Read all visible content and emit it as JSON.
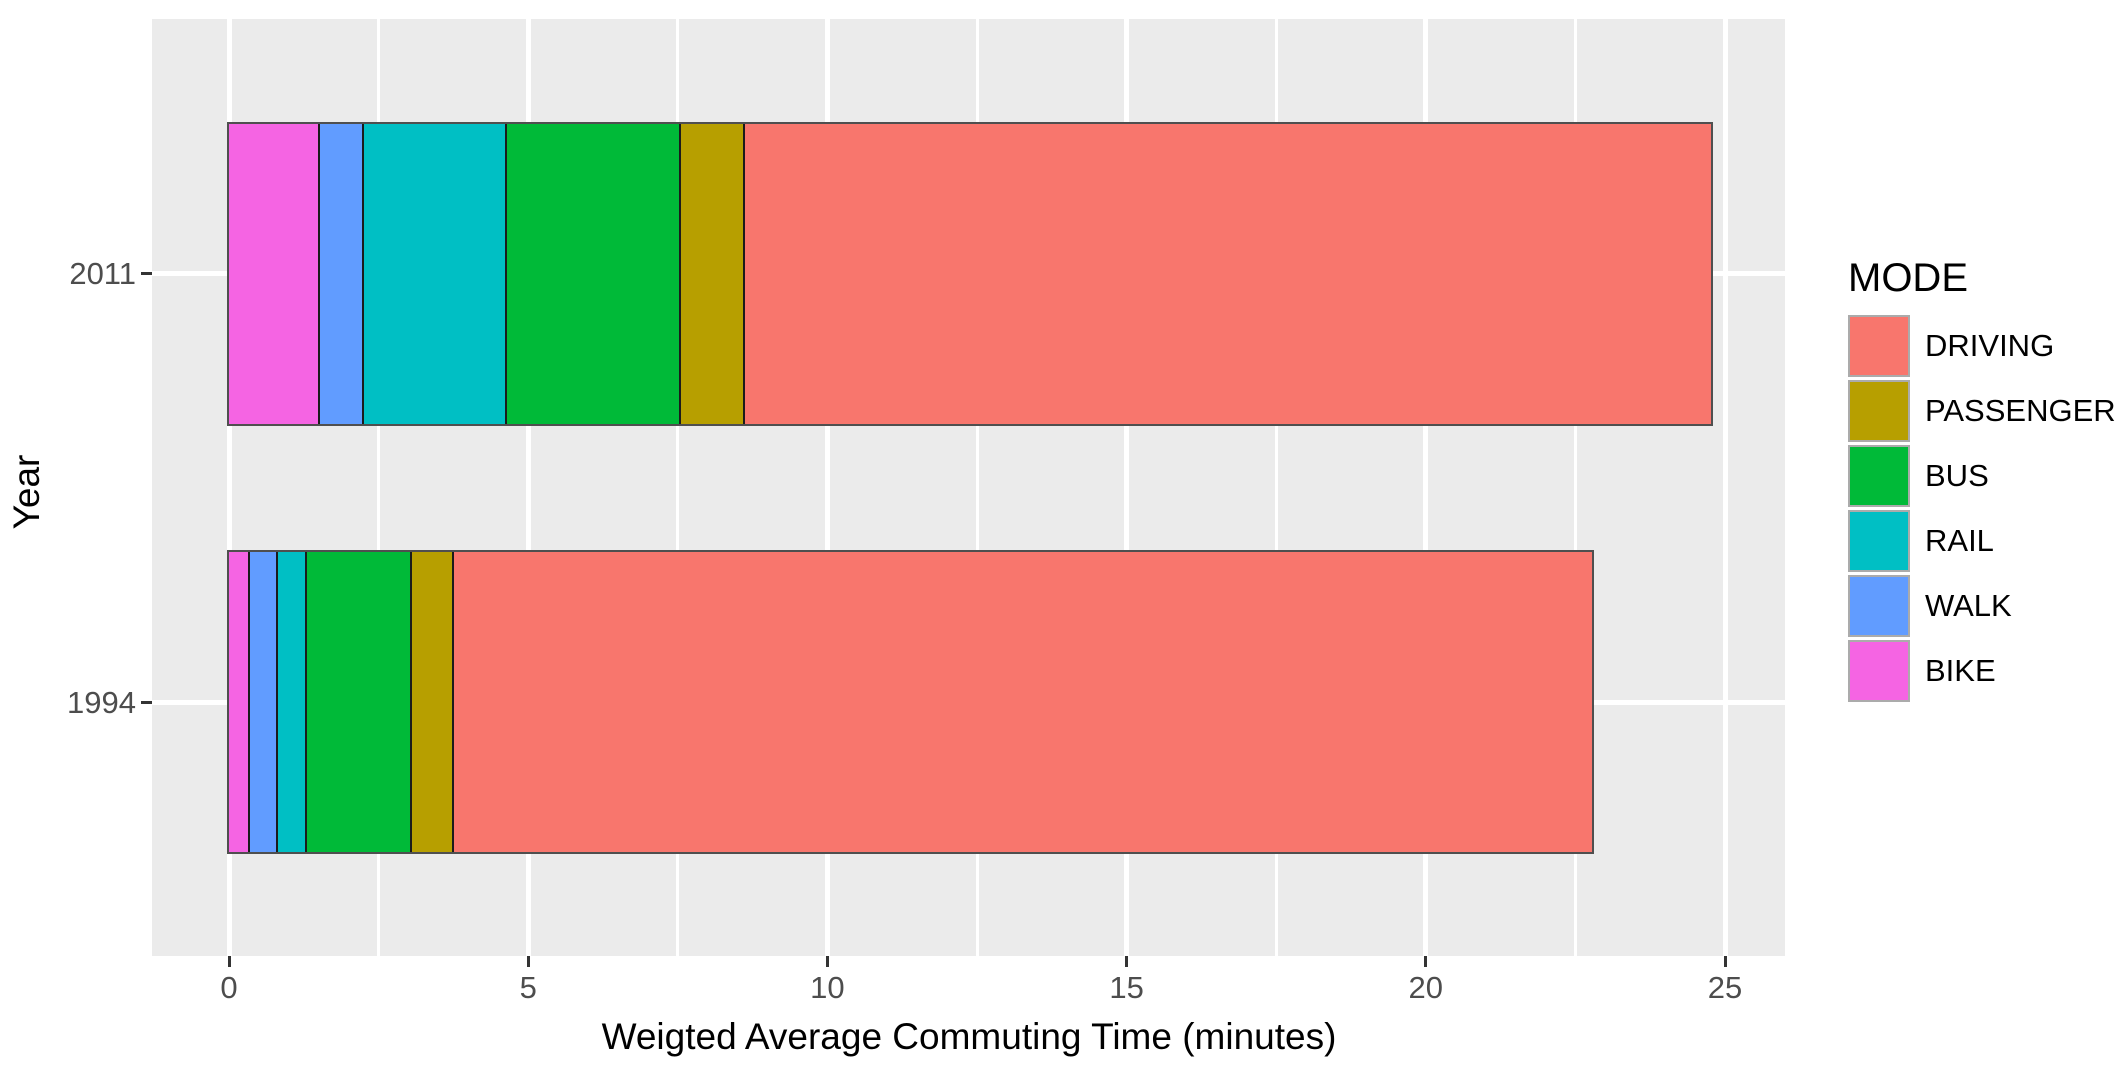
{
  "chart_data": {
    "type": "bar",
    "orientation": "horizontal",
    "stacked": true,
    "title": "",
    "xlabel": "Weigted Average Commuting Time (minutes)",
    "ylabel": "Year",
    "categories": [
      "2011",
      "1994"
    ],
    "x_ticks": [
      0,
      5,
      10,
      15,
      20,
      25
    ],
    "x_minor_ticks": [
      2.5,
      7.5,
      12.5,
      17.5,
      22.5
    ],
    "xlim": [
      -1.3,
      26.0
    ],
    "grid": true,
    "legend_title": "MODE",
    "legend_position": "right",
    "legend_order": [
      "DRIVING",
      "PASSENGER",
      "BUS",
      "RAIL",
      "WALK",
      "BIKE"
    ],
    "stack_order_left_to_right": [
      "BIKE",
      "WALK",
      "RAIL",
      "BUS",
      "PASSENGER",
      "DRIVING"
    ],
    "series": [
      {
        "name": "DRIVING",
        "color": "#F8766D",
        "values": {
          "2011": 16.18,
          "1994": 19.05
        }
      },
      {
        "name": "PASSENGER",
        "color": "#B79F00",
        "values": {
          "2011": 1.07,
          "1994": 0.7
        }
      },
      {
        "name": "BUS",
        "color": "#00BA38",
        "values": {
          "2011": 2.9,
          "1994": 1.76
        }
      },
      {
        "name": "RAIL",
        "color": "#00BFC4",
        "values": {
          "2011": 2.4,
          "1994": 0.48
        }
      },
      {
        "name": "WALK",
        "color": "#619CFF",
        "values": {
          "2011": 0.73,
          "1994": 0.48
        }
      },
      {
        "name": "BIKE",
        "color": "#F564E3",
        "values": {
          "2011": 1.49,
          "1994": 0.31
        }
      }
    ],
    "totals": {
      "2011": 24.77,
      "1994": 22.78
    },
    "style": {
      "panel_bg": "#EBEBEB",
      "grid_color": "#FFFFFF",
      "tick_label_color": "#4D4D4D",
      "axis_title_color": "#000000",
      "bar_outline": "#4F4F4F",
      "segment_divider": "#1B1B1B"
    }
  }
}
